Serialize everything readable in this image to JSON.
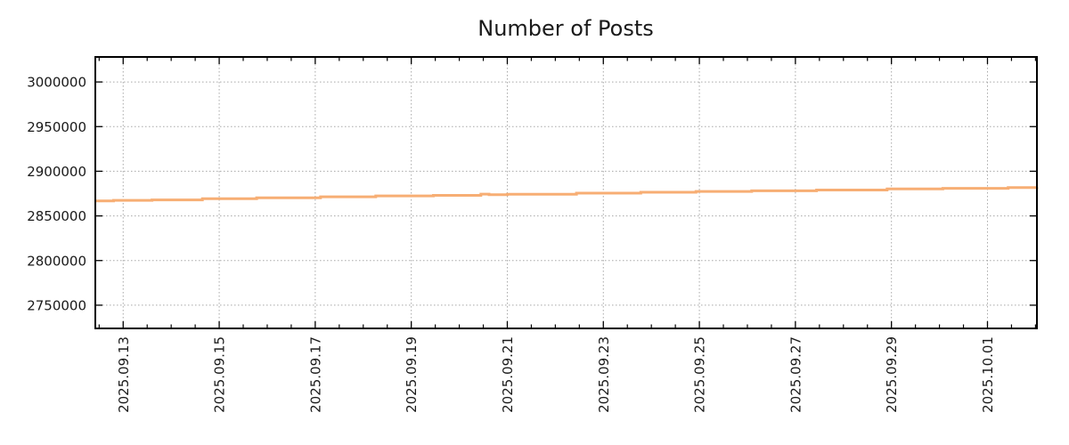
{
  "chart_data": {
    "type": "line",
    "title": "Number of Posts",
    "legend": "none",
    "grid": "dotted",
    "x_axis": {
      "label": "",
      "unit": "days since 2025-09-13",
      "range_days": [
        -0.58,
        19.03
      ],
      "major_tick_days": [
        0,
        2,
        4,
        6,
        8,
        10,
        12,
        14,
        16,
        18
      ],
      "tick_labels": [
        "2025.09.13",
        "2025.09.15",
        "2025.09.17",
        "2025.09.19",
        "2025.09.21",
        "2025.09.23",
        "2025.09.25",
        "2025.09.27",
        "2025.09.29",
        "2025.10.01"
      ],
      "minor_tick_spacing_days": 0.5
    },
    "y_axis": {
      "label": "",
      "range": [
        2724000,
        3028000
      ],
      "ticks": [
        2750000,
        2800000,
        2850000,
        2900000,
        2950000,
        3000000
      ],
      "tick_labels": [
        "2750000",
        "2800000",
        "2850000",
        "2900000",
        "2950000",
        "3000000"
      ]
    },
    "series": [
      {
        "name": "Number of Posts",
        "color": "#F7AE74",
        "line_width": 3,
        "interpolation": "step-after",
        "points": [
          [
            -0.58,
            2866700
          ],
          [
            -0.2,
            2867400
          ],
          [
            0.6,
            2867900
          ],
          [
            1.65,
            2869200
          ],
          [
            2.78,
            2870300
          ],
          [
            4.11,
            2871400
          ],
          [
            5.26,
            2872400
          ],
          [
            6.46,
            2873000
          ],
          [
            7.45,
            2874400
          ],
          [
            7.62,
            2873800
          ],
          [
            8.0,
            2874300
          ],
          [
            9.44,
            2875500
          ],
          [
            10.78,
            2876500
          ],
          [
            11.93,
            2877400
          ],
          [
            13.09,
            2878100
          ],
          [
            14.44,
            2879000
          ],
          [
            15.91,
            2880300
          ],
          [
            17.07,
            2880900
          ],
          [
            18.43,
            2881800
          ],
          [
            19.03,
            2882100
          ]
        ]
      }
    ]
  },
  "colors": {
    "background": "#ffffff",
    "frame": "#000000",
    "grid": "#a8a8a8",
    "tick": "#000000",
    "text": "#1a1a1a",
    "line": "#F7AE74"
  }
}
